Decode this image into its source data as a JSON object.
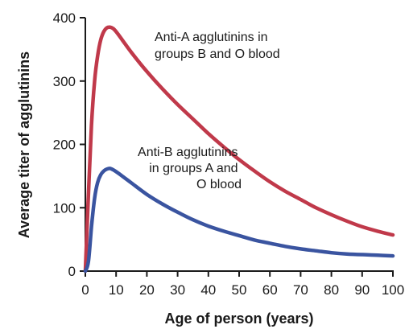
{
  "chart_data": {
    "type": "line",
    "title": "",
    "xlabel": "Age of person (years)",
    "ylabel": "Average titer of agglutinins",
    "xlim": [
      0,
      100
    ],
    "ylim": [
      0,
      400
    ],
    "x_ticks": [
      "0",
      "10",
      "20",
      "30",
      "40",
      "50",
      "60",
      "70",
      "80",
      "90",
      "100"
    ],
    "y_ticks": [
      "0",
      "100",
      "200",
      "300",
      "400"
    ],
    "grid": false,
    "series": [
      {
        "annotation": [
          "Anti-A agglutinins in",
          "groups B and O blood"
        ],
        "color": "#c0394a",
        "x": [
          0,
          1,
          2,
          3,
          4,
          5,
          6,
          7,
          8,
          9,
          10,
          12,
          15,
          20,
          25,
          30,
          35,
          40,
          45,
          50,
          55,
          60,
          65,
          70,
          75,
          80,
          85,
          90,
          95,
          100
        ],
        "y": [
          0,
          120,
          230,
          300,
          340,
          365,
          378,
          384,
          385,
          383,
          378,
          365,
          345,
          315,
          288,
          263,
          240,
          217,
          196,
          176,
          158,
          141,
          126,
          113,
          100,
          89,
          79,
          70,
          63,
          57
        ]
      },
      {
        "annotation": [
          "Anti-B agglutinins",
          "in groups A and",
          "O blood"
        ],
        "color": "#3a54a0",
        "x": [
          0,
          1,
          2,
          3,
          4,
          5,
          6,
          7,
          8,
          9,
          10,
          12,
          15,
          20,
          25,
          30,
          35,
          40,
          45,
          50,
          55,
          60,
          65,
          70,
          75,
          80,
          85,
          90,
          95,
          100
        ],
        "y": [
          0,
          15,
          70,
          115,
          140,
          152,
          158,
          161,
          162,
          160,
          157,
          150,
          139,
          121,
          106,
          93,
          81,
          71,
          63,
          56,
          49,
          44,
          39,
          35,
          32,
          29,
          27,
          26,
          25,
          24
        ]
      }
    ]
  }
}
